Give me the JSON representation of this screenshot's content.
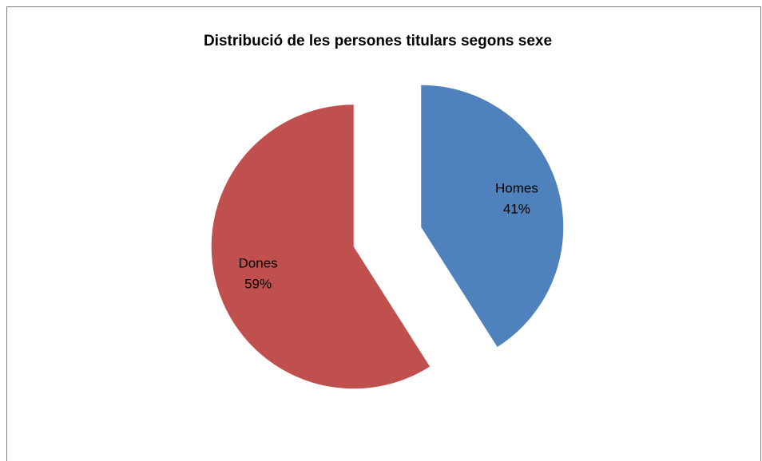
{
  "chart_data": {
    "type": "pie",
    "title": "Distribució de les persones titulars segons sexe",
    "categories": [
      "Homes",
      "Dones"
    ],
    "values": [
      41,
      59
    ],
    "value_labels": [
      "41%",
      "59%"
    ],
    "colors": [
      "#4f81bd",
      "#c0504d"
    ],
    "exploded": true
  }
}
